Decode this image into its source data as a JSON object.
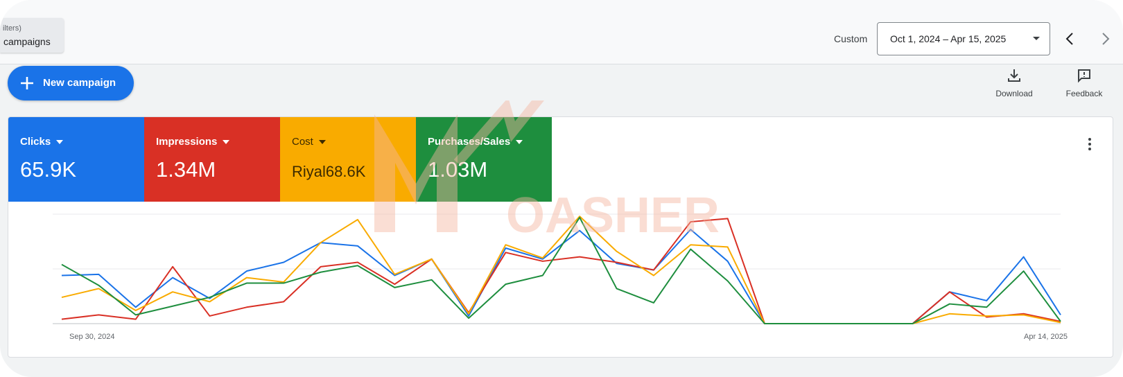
{
  "topbar": {
    "filter_small": "ilters)",
    "filter_main": "campaigns",
    "custom_label": "Custom",
    "date_range": "Oct 1, 2024 – Apr 15, 2025"
  },
  "actions": {
    "new_campaign": "New campaign",
    "download": "Download",
    "feedback": "Feedback"
  },
  "scorecards": [
    {
      "metric": "Clicks",
      "value": "65.9K",
      "color": "#1a73e8"
    },
    {
      "metric": "Impressions",
      "value": "1.34M",
      "color": "#d93025"
    },
    {
      "metric": "Cost",
      "value": "Riyal68.6K",
      "color": "#f9ab00"
    },
    {
      "metric": "Purchases/Sales",
      "value": "1.03M",
      "color": "#1e8e3e"
    }
  ],
  "watermark": {
    "text": "OASHER"
  },
  "chart_data": {
    "type": "line",
    "x_start_label": "Sep 30, 2024",
    "x_end_label": "Apr 14, 2025",
    "grid": true,
    "y_normalized": true,
    "x": [
      0,
      1,
      2,
      3,
      4,
      5,
      6,
      7,
      8,
      9,
      10,
      11,
      12,
      13,
      14,
      15,
      16,
      17,
      18,
      19,
      20,
      21,
      22,
      23,
      24,
      25,
      26,
      27
    ],
    "series": [
      {
        "name": "Clicks",
        "color": "#1a73e8",
        "values": [
          0.44,
          0.45,
          0.15,
          0.42,
          0.23,
          0.48,
          0.56,
          0.74,
          0.71,
          0.44,
          0.59,
          0.07,
          0.69,
          0.59,
          0.85,
          0.55,
          0.49,
          0.86,
          0.57,
          0,
          0,
          0,
          0,
          0,
          0.29,
          0.21,
          0.61,
          0.08
        ]
      },
      {
        "name": "Impressions",
        "color": "#d93025",
        "values": [
          0.04,
          0.08,
          0.04,
          0.52,
          0.07,
          0.15,
          0.2,
          0.52,
          0.56,
          0.36,
          0.59,
          0.1,
          0.65,
          0.57,
          0.61,
          0.56,
          0.49,
          0.93,
          0.96,
          0,
          0,
          0,
          0,
          0,
          0.29,
          0.06,
          0.09,
          0.02
        ]
      },
      {
        "name": "Cost",
        "color": "#f9ab00",
        "values": [
          0.24,
          0.32,
          0.12,
          0.29,
          0.2,
          0.42,
          0.38,
          0.74,
          0.95,
          0.45,
          0.59,
          0.09,
          0.72,
          0.6,
          0.98,
          0.66,
          0.44,
          0.72,
          0.7,
          0,
          0,
          0,
          0,
          0,
          0.09,
          0.07,
          0.08,
          0.01
        ]
      },
      {
        "name": "Purchases/Sales",
        "color": "#1e8e3e",
        "values": [
          0.54,
          0.35,
          0.08,
          0.16,
          0.24,
          0.37,
          0.37,
          0.47,
          0.53,
          0.33,
          0.4,
          0.05,
          0.36,
          0.44,
          0.97,
          0.32,
          0.19,
          0.68,
          0.39,
          0,
          0,
          0,
          0,
          0,
          0.18,
          0.15,
          0.48,
          0.02
        ]
      }
    ]
  }
}
